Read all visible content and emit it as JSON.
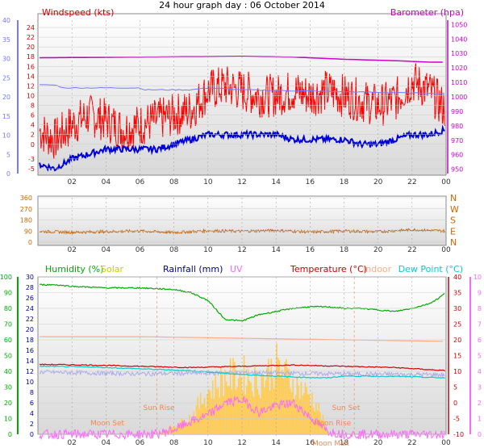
{
  "title": "24 hour graph day : 06 October 2014",
  "time_ticks": [
    "02",
    "04",
    "06",
    "08",
    "10",
    "12",
    "14",
    "16",
    "18",
    "20",
    "22",
    "00"
  ],
  "colors": {
    "wind": "#ff0000",
    "wind_avg": "#0000dd",
    "baro": "#cc00cc",
    "dir": "#cc6600",
    "humidity": "#00aa00",
    "solar": "#cccc00",
    "rain": "#000099",
    "uv": "#ff66ff",
    "temp": "#cc0000",
    "indoor": "#ffaa88",
    "dew": "#00cccc",
    "rain_axis": "#7777ff",
    "annot": "#ee8855"
  },
  "chart_data": [
    {
      "type": "line",
      "panel": "wind",
      "labels": {
        "left": "Windspeed (kts)",
        "right": "Barometer (hpa)"
      },
      "x": [
        0,
        24
      ],
      "left_axis": {
        "ticks": [
          -5,
          -3,
          0,
          2,
          4,
          6,
          8,
          10,
          12,
          14,
          16,
          18,
          20,
          22,
          24
        ],
        "ylim": [
          -6,
          25.5
        ]
      },
      "right_axis": {
        "ticks": [
          950,
          960,
          970,
          980,
          990,
          1000,
          1010,
          1020,
          1030,
          1040,
          1050
        ],
        "ylim": [
          947,
          1053
        ]
      },
      "outer_axis": {
        "ticks": [
          0,
          5,
          10,
          15,
          20,
          25,
          30,
          35,
          40
        ],
        "ylim": [
          0,
          40
        ]
      },
      "series": [
        {
          "role": "gust",
          "x": [
            0,
            1,
            2,
            3,
            4,
            5,
            6,
            7,
            8,
            9,
            10,
            11,
            12,
            13,
            14,
            15,
            16,
            17,
            18,
            19,
            20,
            21,
            22,
            23,
            24
          ],
          "values": [
            3,
            1,
            4,
            6,
            5,
            3,
            4,
            5,
            6,
            7,
            11,
            12,
            11,
            10,
            10,
            11,
            10,
            11,
            10,
            9,
            8,
            9,
            13,
            11,
            7
          ]
        },
        {
          "role": "average",
          "x": [
            0,
            1,
            2,
            3,
            4,
            5,
            6,
            7,
            8,
            9,
            10,
            11,
            12,
            13,
            14,
            15,
            16,
            17,
            18,
            19,
            20,
            21,
            22,
            23,
            24
          ],
          "values": [
            -4,
            -5,
            -3,
            -2,
            -1,
            -1,
            -1,
            -1,
            0,
            1,
            2,
            2,
            2,
            2,
            2,
            1,
            1,
            1,
            1,
            0,
            0,
            1,
            2,
            2,
            3
          ]
        },
        {
          "role": "rain",
          "x": [
            0,
            1,
            1.5,
            2,
            5,
            6,
            6.3,
            7,
            9,
            10,
            12,
            24
          ],
          "values": [
            12.2,
            12.2,
            11.6,
            11.6,
            11.6,
            11.6,
            11.2,
            11.2,
            11.2,
            11.6,
            11.2,
            10.4
          ]
        },
        {
          "role": "barometer",
          "x": [
            0,
            6,
            12,
            15,
            18,
            21,
            23,
            24
          ],
          "values": [
            1027,
            1027.5,
            1028,
            1027.5,
            1026,
            1025,
            1024,
            1024
          ]
        }
      ]
    },
    {
      "type": "line",
      "panel": "direction",
      "labels": {
        "right": [
          "N",
          "W",
          "S",
          "E",
          "N"
        ]
      },
      "left_axis": {
        "ticks": [
          0,
          90,
          180,
          270,
          360
        ],
        "ylim": [
          0,
          360
        ]
      },
      "series": [
        {
          "role": "direction",
          "x": [
            0,
            2,
            4,
            6,
            8,
            10,
            12,
            14,
            16,
            18,
            20,
            22,
            24
          ],
          "values": [
            88,
            80,
            85,
            90,
            78,
            92,
            88,
            95,
            82,
            90,
            85,
            100,
            90
          ]
        }
      ]
    },
    {
      "type": "line",
      "panel": "temperature",
      "labels": {
        "humidity": "Humidity (%)",
        "solar": "Solar",
        "rain": "Rainfall (mm)",
        "uv": "UV",
        "temp": "Temperature (°C)",
        "indoor": "Indoor",
        "dew": "Dew Point (°C)"
      },
      "humidity_axis": {
        "ticks": [
          0,
          10,
          20,
          30,
          40,
          50,
          60,
          70,
          80,
          90,
          100
        ],
        "ylim": [
          0,
          100
        ]
      },
      "rain_axis": {
        "ticks": [
          0,
          2,
          4,
          6,
          8,
          10,
          12,
          14,
          16,
          18,
          20,
          22,
          24,
          26,
          28,
          30
        ],
        "ylim": [
          0,
          30
        ]
      },
      "temp_axis": {
        "ticks": [
          -10,
          -5,
          0,
          5,
          10,
          15,
          20,
          25,
          30,
          35,
          40
        ],
        "ylim": [
          -10,
          40
        ]
      },
      "uv_axis": {
        "ticks": [
          0,
          1,
          2,
          3,
          4,
          5,
          6,
          7,
          8,
          9,
          10
        ],
        "ylim": [
          0,
          10
        ]
      },
      "annotations": [
        "Moon Set",
        "Sun Rise",
        "Sun Set",
        "Moon Rise",
        "Moon Max"
      ],
      "series": [
        {
          "role": "humidity",
          "x": [
            0,
            1,
            2,
            4,
            6,
            8,
            9,
            10,
            11,
            12,
            13,
            14,
            15,
            16,
            17,
            18,
            19,
            20,
            21,
            22,
            23,
            23.5,
            24
          ],
          "values": [
            95,
            95,
            94,
            93,
            93,
            92,
            90,
            85,
            73,
            72,
            76,
            78,
            80,
            81,
            81,
            80,
            80,
            79,
            78,
            80,
            83,
            86,
            90
          ]
        },
        {
          "role": "indoor",
          "x": [
            0,
            6,
            12,
            18,
            24
          ],
          "values": [
            21,
            21,
            20.5,
            20,
            19.5
          ]
        },
        {
          "role": "temperature",
          "x": [
            0,
            3,
            6,
            9,
            12,
            15,
            18,
            21,
            24
          ],
          "values": [
            12.2,
            12,
            11.6,
            11.2,
            11.6,
            12,
            11.6,
            11.2,
            10.2
          ]
        },
        {
          "role": "dew",
          "x": [
            0,
            3,
            6,
            9,
            12,
            15,
            17,
            18,
            21,
            24
          ],
          "values": [
            11.6,
            11.4,
            10.8,
            10.2,
            9,
            8.2,
            7.9,
            8.5,
            8.4,
            7.9
          ]
        },
        {
          "role": "rain_spiky",
          "x": [
            0,
            6,
            12,
            18,
            24
          ],
          "values": [
            9.8,
            9.2,
            9.6,
            9.2,
            8.9
          ]
        },
        {
          "role": "solar",
          "x": [
            0,
            7,
            8,
            9,
            10,
            11,
            12,
            13,
            14,
            15,
            16,
            16.5,
            17,
            18,
            24
          ],
          "values": [
            0,
            0,
            2,
            4,
            10,
            13,
            14,
            12,
            16,
            12,
            9,
            6,
            1,
            0,
            0
          ]
        },
        {
          "role": "uv",
          "x": [
            0,
            7,
            8,
            9,
            10,
            11,
            12,
            13,
            14,
            15,
            16,
            17,
            18,
            24
          ],
          "values": [
            0,
            0,
            0.3,
            0.8,
            1.2,
            2,
            2.2,
            1.4,
            1.8,
            2,
            1.1,
            0.2,
            0,
            0
          ]
        }
      ]
    }
  ]
}
